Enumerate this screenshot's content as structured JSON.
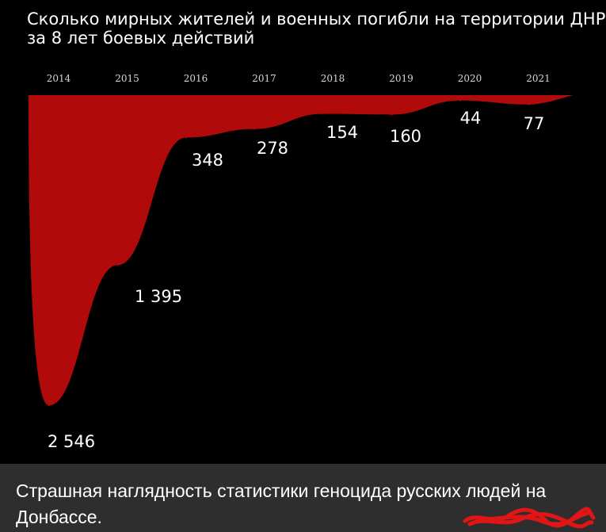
{
  "chart_data": {
    "type": "area",
    "title": "Сколько мирных жителей и военных погибли на территории ДНР за 8 лет боевых действий",
    "title_lines": [
      "Сколько мирных жителей и военных погибли на территории ДНР",
      "за 8 лет боевых действий"
    ],
    "categories": [
      "2014",
      "2015",
      "2016",
      "2017",
      "2018",
      "2019",
      "2020",
      "2021"
    ],
    "value_labels": [
      "2 546",
      "1 395",
      "348",
      "278",
      "154",
      "160",
      "44",
      "77"
    ],
    "values": [
      2546,
      1395,
      348,
      278,
      154,
      160,
      44,
      77
    ],
    "ylim": [
      0,
      2700
    ],
    "y_inverted": true,
    "grid": false,
    "legend": "none",
    "colors": {
      "area": "#b00a0a",
      "background": "#000000",
      "text": "#ffffff",
      "year_labels": "#d6d6d6"
    }
  },
  "caption": {
    "text": "Страшная наглядность статистики геноцида русских людей на Донбассе.",
    "background": "#2e2e2e"
  },
  "scribble": {
    "color": "#e11515"
  }
}
